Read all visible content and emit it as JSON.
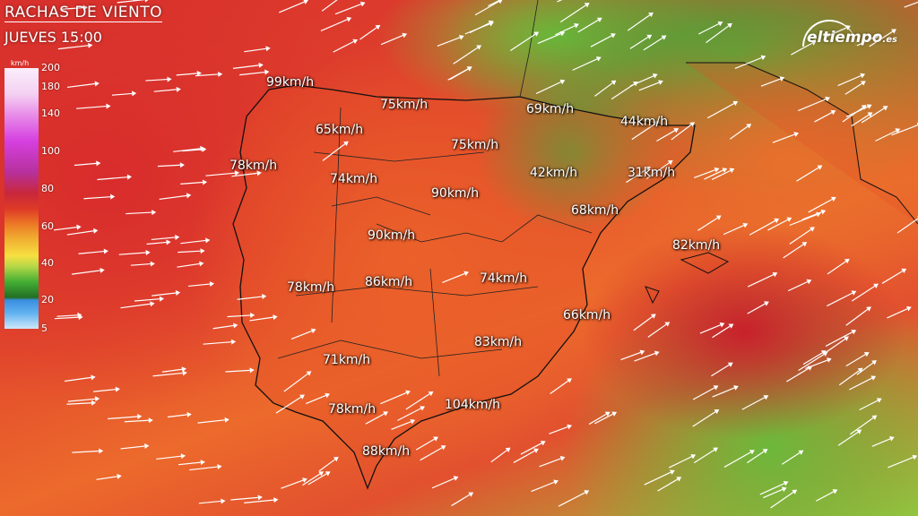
{
  "title": "RACHAS DE VIENTO",
  "subtitle": "JUEVES 15:00",
  "brand": {
    "name": "eltiempo",
    "suffix": ".es"
  },
  "legend": {
    "unit": "km/h",
    "ticks": [
      "200",
      "180",
      "140",
      "100",
      "80",
      "60",
      "40",
      "20",
      "5"
    ]
  },
  "labels": [
    "99km/h",
    "75km/h",
    "69km/h",
    "44km/h",
    "65km/h",
    "75km/h",
    "78km/h",
    "42km/h",
    "31km/h",
    "74km/h",
    "90km/h",
    "68km/h",
    "90km/h",
    "82km/h",
    "78km/h",
    "86km/h",
    "74km/h",
    "66km/h",
    "83km/h",
    "71km/h",
    "104km/h",
    "78km/h",
    "88km/h"
  ]
}
